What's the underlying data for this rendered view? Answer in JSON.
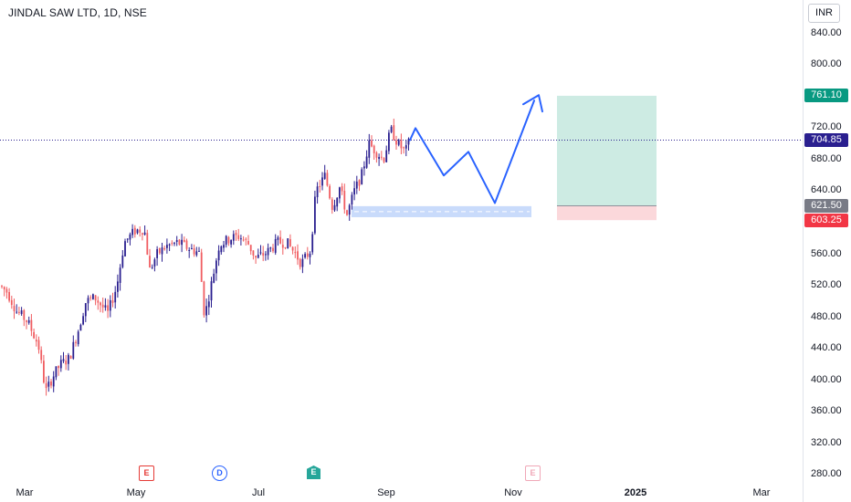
{
  "header": {
    "title": "JINDAL SAW LTD, 1D, NSE"
  },
  "price_axis": {
    "currency": "INR",
    "ticks": [
      "840.00",
      "800.00",
      "720.00",
      "680.00",
      "640.00",
      "560.00",
      "520.00",
      "480.00",
      "440.00",
      "400.00",
      "360.00",
      "320.00",
      "280.00"
    ],
    "badges": {
      "target": "761.10",
      "last": "704.85",
      "entry": "621.50",
      "stop": "603.25"
    }
  },
  "time_axis": {
    "labels": [
      "Mar",
      "May",
      "Jul",
      "Sep",
      "Nov",
      "2025",
      "Mar"
    ]
  },
  "events": [
    {
      "type": "earnings",
      "label": "E"
    },
    {
      "type": "dividend",
      "label": "D"
    },
    {
      "type": "split",
      "label": "E"
    },
    {
      "type": "earnings-upcoming",
      "label": "E"
    }
  ],
  "colors": {
    "up": "#2a1f8f",
    "down": "#f05d61",
    "target_zone": "#cdebe3",
    "stop_zone": "#fbd8db",
    "projection": "#2962ff",
    "support_zone": "#c9dbfb",
    "badge_target": "#089981",
    "badge_last": "#2a1f8f",
    "badge_entry": "#787b86",
    "badge_stop": "#f23645"
  },
  "chart_data": {
    "type": "candlestick",
    "symbol": "JINDAL SAW LTD",
    "interval": "1D",
    "exchange": "NSE",
    "ylim": [
      270,
      880
    ],
    "y_ticks": [
      280,
      320,
      360,
      400,
      440,
      480,
      520,
      560,
      640,
      680,
      720,
      800,
      840
    ],
    "trend": [
      [
        "Mar",
        520
      ],
      [
        "Mar",
        485
      ],
      [
        "Apr",
        380
      ],
      [
        "Apr",
        420
      ],
      [
        "Apr",
        500
      ],
      [
        "May",
        595
      ],
      [
        "May",
        545
      ],
      [
        "Jun",
        575
      ],
      [
        "Jun",
        475
      ],
      [
        "Jun",
        590
      ],
      [
        "Jul",
        555
      ],
      [
        "Jul",
        570
      ],
      [
        "Aug",
        545
      ],
      [
        "Aug",
        650
      ],
      [
        "Aug",
        610
      ],
      [
        "Sep",
        700
      ],
      [
        "Sep",
        720
      ],
      [
        "Sep",
        704.85
      ]
    ],
    "last_price": 704.85,
    "projection_path": [
      704.85,
      720,
      660,
      690,
      625,
      755
    ],
    "support_zone": [
      607,
      621
    ],
    "position": {
      "target": 761.1,
      "entry": 621.5,
      "stop": 603.25
    }
  }
}
